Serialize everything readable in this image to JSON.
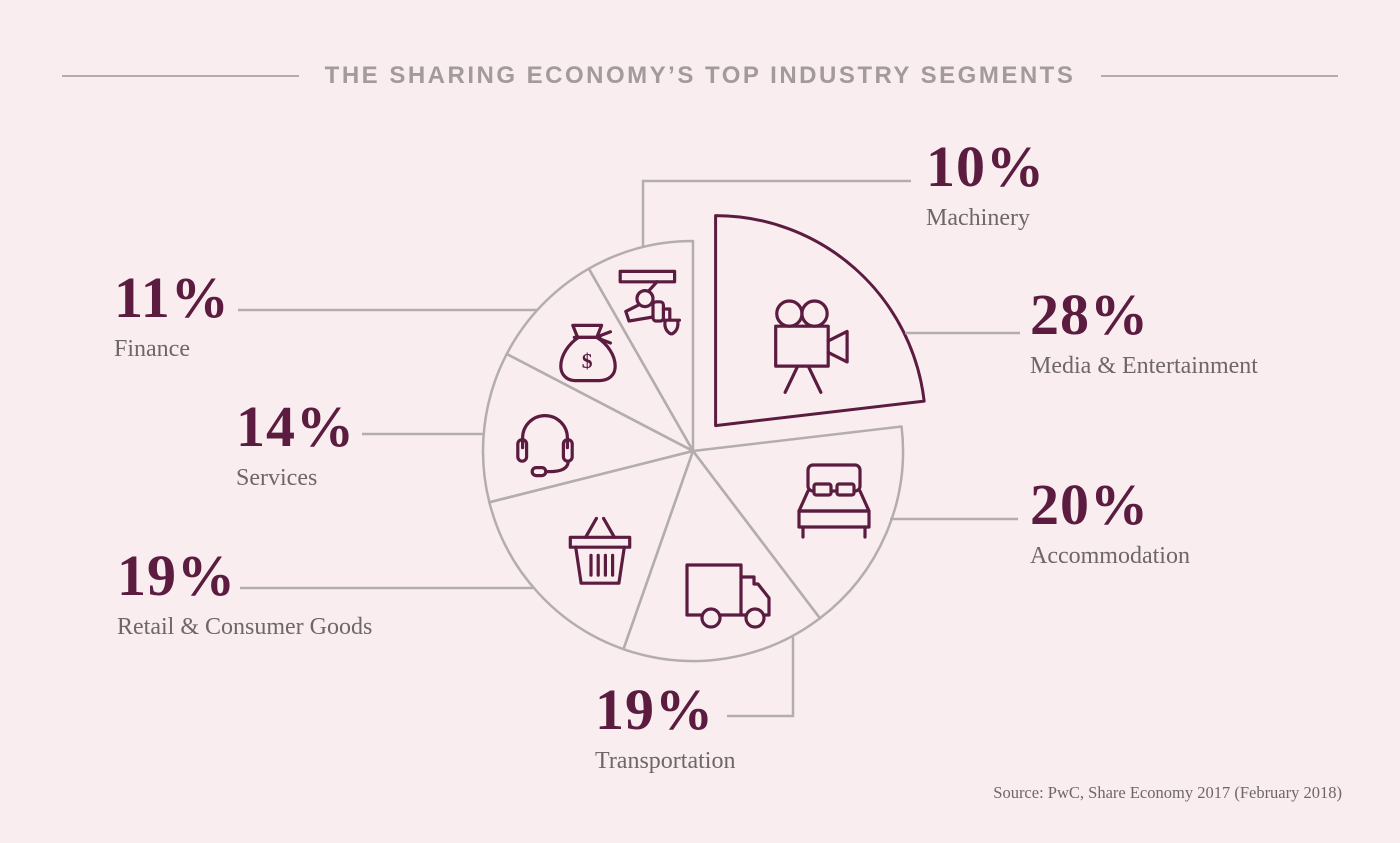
{
  "title": "THE SHARING ECONOMY’S TOP INDUSTRY SEGMENTS",
  "source": "Source: PwC, Share Economy 2017 (February 2018)",
  "colors": {
    "background": "#f9edef",
    "accent": "#5b1c3f",
    "label_gray": "#6e6765",
    "line_gray": "#b3adaf",
    "title_gray": "#a29a9c"
  },
  "chart_data": {
    "type": "pie",
    "title": "THE SHARING ECONOMY’S TOP INDUSTRY SEGMENTS",
    "unit": "%",
    "start_angle_deg": 0,
    "direction": "clockwise",
    "legend_position": "callouts-around",
    "segments": [
      {
        "label": "Media & Entertainment",
        "value": 28,
        "pct": "28%",
        "icon": "video-camera",
        "exploded": true
      },
      {
        "label": "Accommodation",
        "value": 20,
        "pct": "20%",
        "icon": "bed",
        "exploded": false
      },
      {
        "label": "Transportation",
        "value": 19,
        "pct": "19%",
        "icon": "truck",
        "exploded": false
      },
      {
        "label": "Retail & Consumer Goods",
        "value": 19,
        "pct": "19%",
        "icon": "shopping-basket",
        "exploded": false
      },
      {
        "label": "Services",
        "value": 14,
        "pct": "14%",
        "icon": "headset",
        "exploded": false
      },
      {
        "label": "Finance",
        "value": 11,
        "pct": "11%",
        "icon": "money-bag",
        "exploded": false
      },
      {
        "label": "Machinery",
        "value": 10,
        "pct": "10%",
        "icon": "robotic-arm",
        "exploded": false
      }
    ]
  }
}
